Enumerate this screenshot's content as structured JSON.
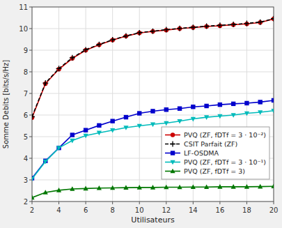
{
  "chart_data": {
    "type": "line",
    "xlabel": "Utilisateurs",
    "ylabel": "Somme Debits [bits/s/Hz]",
    "x": [
      2,
      3,
      4,
      5,
      6,
      7,
      8,
      9,
      10,
      11,
      12,
      13,
      14,
      15,
      16,
      17,
      18,
      19,
      20
    ],
    "series": [
      {
        "name": "PVQ (ZF, fDTf = 3 · 10⁻²)",
        "color": "#cc0000",
        "marker": "circle",
        "line_style": "solid",
        "values": [
          5.88,
          7.45,
          8.12,
          8.62,
          9.0,
          9.25,
          9.47,
          9.65,
          9.8,
          9.87,
          9.93,
          10.0,
          10.05,
          10.1,
          10.13,
          10.18,
          10.22,
          10.28,
          10.45
        ]
      },
      {
        "name": "CSIT Parfait (ZF)",
        "color": "#000000",
        "marker": "plus",
        "line_style": "dashed",
        "values": [
          5.92,
          7.48,
          8.15,
          8.65,
          9.02,
          9.27,
          9.48,
          9.66,
          9.81,
          9.88,
          9.95,
          10.01,
          10.06,
          10.11,
          10.15,
          10.19,
          10.24,
          10.3,
          10.46
        ]
      },
      {
        "name": "LF-OSDMA",
        "color": "#0000cc",
        "marker": "square",
        "line_style": "solid",
        "values": [
          3.08,
          3.88,
          4.48,
          5.08,
          5.3,
          5.52,
          5.72,
          5.9,
          6.08,
          6.18,
          6.25,
          6.3,
          6.38,
          6.42,
          6.48,
          6.52,
          6.55,
          6.6,
          6.68
        ]
      },
      {
        "name": "PVQ (ZF, fDTf = 3 · 10⁻¹)",
        "color": "#00bbbb",
        "marker": "triangle-down",
        "line_style": "solid",
        "values": [
          3.05,
          3.85,
          4.48,
          4.82,
          5.05,
          5.18,
          5.3,
          5.42,
          5.5,
          5.57,
          5.63,
          5.72,
          5.82,
          5.9,
          5.95,
          6.0,
          6.08,
          6.13,
          6.2
        ]
      },
      {
        "name": "PVQ (ZF, fDTf = 3)",
        "color": "#007700",
        "marker": "triangle-up",
        "line_style": "solid",
        "values": [
          2.18,
          2.42,
          2.52,
          2.58,
          2.6,
          2.62,
          2.63,
          2.64,
          2.65,
          2.65,
          2.66,
          2.66,
          2.67,
          2.67,
          2.68,
          2.68,
          2.68,
          2.69,
          2.7
        ]
      }
    ],
    "xlim": [
      2,
      20
    ],
    "ylim": [
      2,
      11
    ],
    "xticks": [
      2,
      4,
      6,
      8,
      10,
      12,
      14,
      16,
      18,
      20
    ],
    "yticks": [
      2,
      3,
      4,
      5,
      6,
      7,
      8,
      9,
      10,
      11
    ],
    "grid": true,
    "legend": "lower right"
  }
}
